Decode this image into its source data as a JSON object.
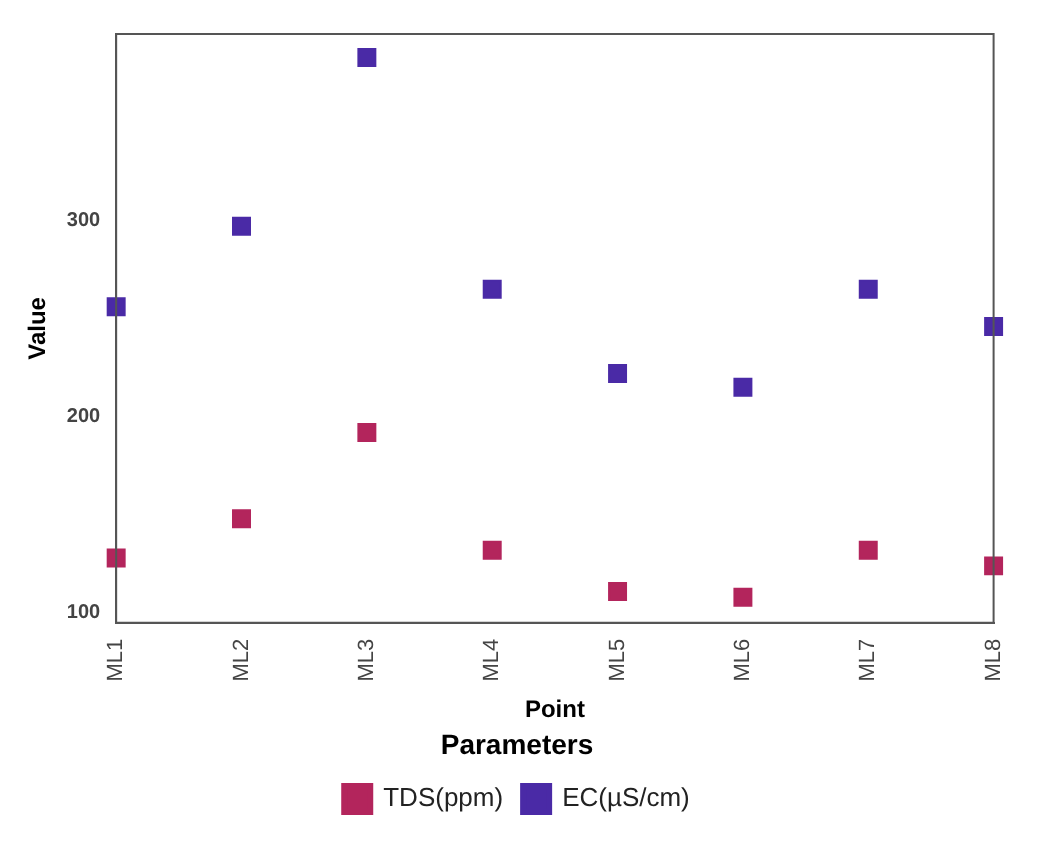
{
  "chart_data": {
    "type": "scatter",
    "xlabel": "Point",
    "ylabel": "Value",
    "legend_title": "Parameters",
    "categories": [
      "ML1",
      "ML2",
      "ML3",
      "ML4",
      "ML5",
      "ML6",
      "ML7",
      "ML8"
    ],
    "series": [
      {
        "name": "TDS(ppm)",
        "color": "#b3255c",
        "values": [
          128,
          148,
          192,
          132,
          111,
          108,
          132,
          124
        ]
      },
      {
        "name": "EC(µS/cm)",
        "color": "#4a2aa6",
        "values": [
          256,
          297,
          383,
          265,
          222,
          215,
          265,
          246
        ]
      }
    ],
    "ylim": [
      95,
      395
    ],
    "yticks": [
      100,
      200,
      300
    ],
    "grid": false,
    "legend": "bottom",
    "marker": "square"
  }
}
